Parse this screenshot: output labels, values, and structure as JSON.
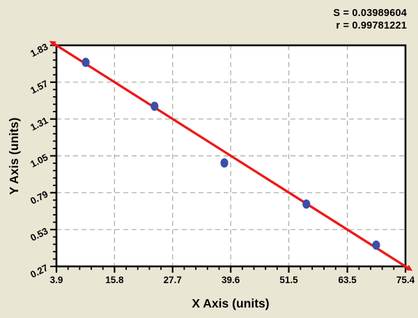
{
  "chart_data": {
    "type": "scatter",
    "title": "",
    "xlabel": "X Axis (units)",
    "ylabel": "Y Axis (units)",
    "xlim": [
      3.9,
      75.4
    ],
    "ylim": [
      0.27,
      1.83
    ],
    "x_tick_labels": [
      "3.9",
      "15.8",
      "27.7",
      "39.6",
      "51.5",
      "63.5",
      "75.4"
    ],
    "y_tick_labels": [
      "0.27",
      "0.53",
      "0.79",
      "1.05",
      "1.31",
      "1.57",
      "1.83"
    ],
    "minor_ticks_between_majors": 4,
    "grid": "dashed",
    "legend": "none",
    "annotations": [
      "S = 0.03989604",
      "r = 0.99781221"
    ],
    "points": [
      {
        "x": 9.9,
        "y": 1.71
      },
      {
        "x": 24.0,
        "y": 1.4
      },
      {
        "x": 38.3,
        "y": 1.0
      },
      {
        "x": 55.1,
        "y": 0.71
      },
      {
        "x": 69.4,
        "y": 0.42
      }
    ],
    "fit_line": {
      "x1": 3.9,
      "y1": 1.83,
      "x2": 75.4,
      "y2": 0.27
    },
    "colors": {
      "background": "#e9e6d4",
      "plot_background": "#ffffff",
      "frame": "#000000",
      "grid": "#a8a79e",
      "fit_line": "#ee1818",
      "point": "#3a4fa7",
      "text": "#000000"
    }
  }
}
